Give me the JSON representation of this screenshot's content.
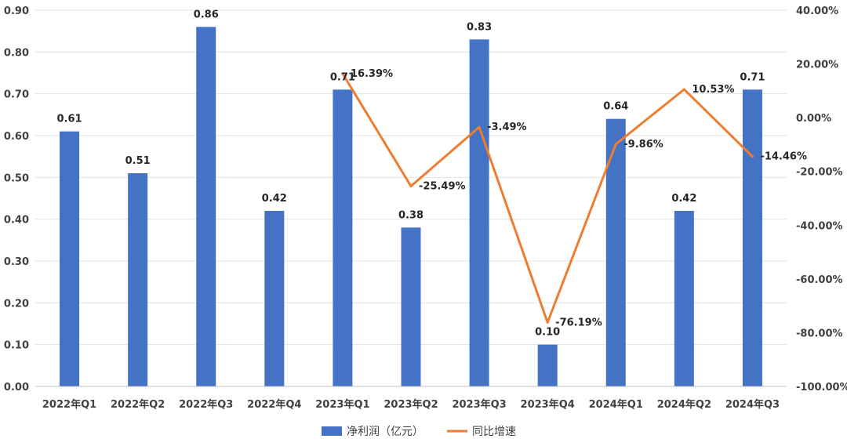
{
  "chart_data": {
    "type": "bar",
    "categories": [
      "2022年Q1",
      "2022年Q2",
      "2022年Q3",
      "2022年Q4",
      "2023年Q1",
      "2023年Q2",
      "2023年Q3",
      "2023年Q4",
      "2024年Q1",
      "2024年Q2",
      "2024年Q3"
    ],
    "series": [
      {
        "name": "净利润（亿元）",
        "type": "bar",
        "axis": "left",
        "color": "#4472C4",
        "values": [
          0.61,
          0.51,
          0.86,
          0.42,
          0.71,
          0.38,
          0.83,
          0.1,
          0.64,
          0.42,
          0.71
        ],
        "labels": [
          "0.61",
          "0.51",
          "0.86",
          "0.42",
          "0.71",
          "0.38",
          "0.83",
          "0.10",
          "0.64",
          "0.42",
          "0.71"
        ]
      },
      {
        "name": "同比增速",
        "type": "line",
        "axis": "right",
        "color": "#ED7D31",
        "values": [
          null,
          null,
          null,
          null,
          16.39,
          -25.49,
          -3.49,
          -76.19,
          -9.86,
          10.53,
          -14.46
        ],
        "labels": [
          null,
          null,
          null,
          null,
          "16.39%",
          "-25.49%",
          "-3.49%",
          "-76.19%",
          "-9.86%",
          "10.53%",
          "-14.46%"
        ]
      }
    ],
    "y_left": {
      "ylim": [
        0,
        0.9
      ],
      "ticks": [
        "0.00",
        "0.10",
        "0.20",
        "0.30",
        "0.40",
        "0.50",
        "0.60",
        "0.70",
        "0.80",
        "0.90"
      ]
    },
    "y_right": {
      "ylim": [
        -100,
        40
      ],
      "ticks": [
        "-100.00%",
        "-80.00%",
        "-60.00%",
        "-40.00%",
        "-20.00%",
        "0.00%",
        "20.00%",
        "40.00%"
      ]
    },
    "grid": true,
    "legend": "bottom"
  }
}
